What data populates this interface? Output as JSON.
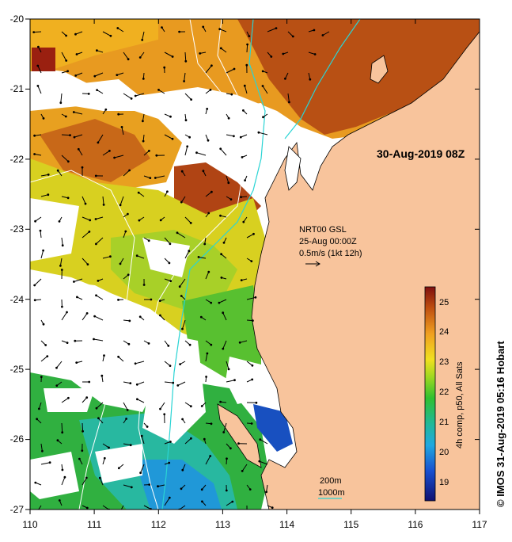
{
  "map": {
    "timestamp": "30-Aug-2019 08Z",
    "x_ticks": [
      "110",
      "111",
      "112",
      "113",
      "114",
      "115",
      "116",
      "117"
    ],
    "y_ticks": [
      "-20",
      "-21",
      "-22",
      "-23",
      "-24",
      "-25",
      "-26",
      "-27"
    ],
    "current_note": {
      "line1": "NRT00 GSL",
      "line2": "25-Aug 00:00Z",
      "line3": "0.5m/s (1kt 12h)"
    },
    "isobath_legend": {
      "label_200": "200m",
      "label_1000": "1000m"
    }
  },
  "colorbar": {
    "title": "4h comp, p50, All Sats",
    "ticks": [
      "25",
      "24",
      "23",
      "22",
      "21",
      "20",
      "19"
    ]
  },
  "credit": "© IMOS 31-Aug-2019 05:16 Hobart",
  "colors": {
    "land": "#f8c49c",
    "coast": "#000000",
    "isobath_200": "#ffffff",
    "isobath_1000": "#2ad4d4"
  }
}
